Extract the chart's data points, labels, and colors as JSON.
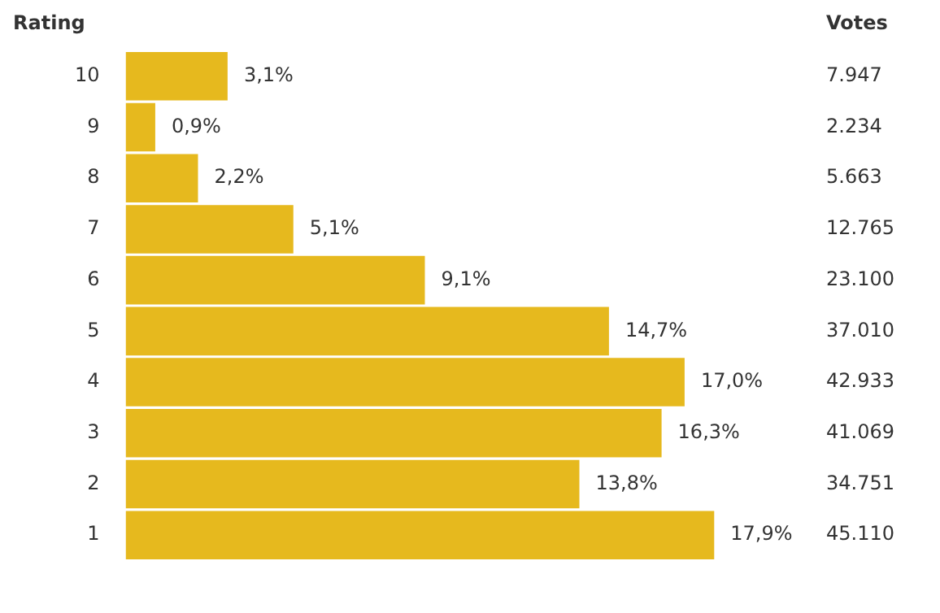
{
  "chart_data": {
    "type": "bar",
    "orientation": "horizontal",
    "ylabel": "Rating",
    "categories": [
      "10",
      "9",
      "8",
      "7",
      "6",
      "5",
      "4",
      "3",
      "2",
      "1"
    ],
    "values": [
      3.1,
      0.9,
      2.2,
      5.1,
      9.1,
      14.7,
      17.0,
      16.3,
      13.8,
      17.9
    ],
    "value_labels": [
      "3,1%",
      "0,9%",
      "2,2%",
      "5,1%",
      "9,1%",
      "14,7%",
      "17,0%",
      "16,3%",
      "13,8%",
      "17,9%"
    ],
    "color": "#e6b91e",
    "annotations": [
      "Votes",
      "7.947",
      "2.234",
      "5.663",
      "12.765",
      "23.100",
      "37.010",
      "42.933",
      "41.069",
      "34.751",
      "45.110"
    ]
  }
}
